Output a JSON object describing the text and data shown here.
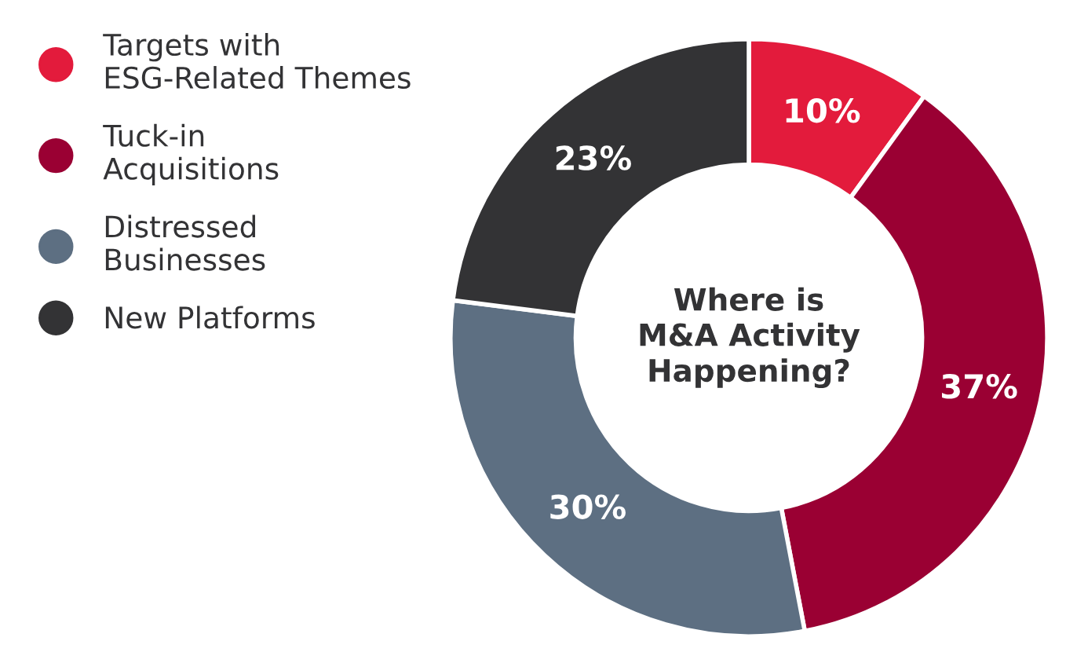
{
  "chart_data": {
    "type": "donut",
    "title": "Where is\nM&A Activity\nHappening?",
    "categories": [
      "Targets with\nESG-Related Themes",
      "Tuck-in\nAcquisitions",
      "Distressed\nBusinesses",
      "New Platforms"
    ],
    "values": [
      10,
      37,
      30,
      23
    ],
    "colors": [
      "#e31b3c",
      "#9a0033",
      "#5d6f82",
      "#333335"
    ],
    "value_labels": [
      "10%",
      "37%",
      "30%",
      "23%"
    ],
    "legend": "left"
  }
}
